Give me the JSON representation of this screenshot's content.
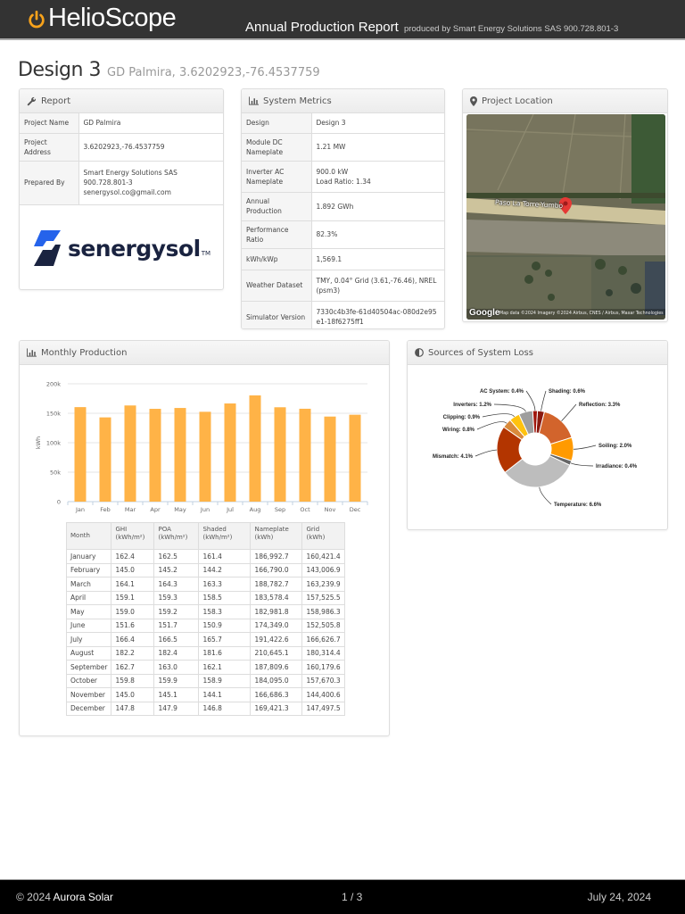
{
  "header": {
    "logo_text": "HelioScope",
    "report_title": "Annual Production Report",
    "report_subtitle": "produced by Smart Energy Solutions SAS 900.728.801-3"
  },
  "page": {
    "title": "Design 3",
    "subtitle": "GD Palmira, 3.6202923,-76.4537759"
  },
  "report_panel": {
    "title": "Report",
    "icon": "wrench-icon",
    "rows": [
      {
        "label": "Project Name",
        "value": "GD Palmira"
      },
      {
        "label": "Project Address",
        "value": "3.6202923,-76.4537759"
      },
      {
        "label": "Prepared By",
        "value": "Smart Energy Solutions SAS 900.728.801-3",
        "value2": "senergysol.co@gmail.com"
      }
    ],
    "brand_name": "senergysol",
    "brand_tm": "TM"
  },
  "metrics_panel": {
    "title": "System Metrics",
    "icon": "bar-chart-icon",
    "rows": [
      {
        "label": "Design",
        "value": "Design 3"
      },
      {
        "label": "Module DC Nameplate",
        "value": "1.21 MW"
      },
      {
        "label": "Inverter AC Nameplate",
        "value": "900.0 kW",
        "value2": "Load Ratio: 1.34"
      },
      {
        "label": "Annual Production",
        "value": "1.892 GWh"
      },
      {
        "label": "Performance Ratio",
        "value": "82.3%"
      },
      {
        "label": "kWh/kWp",
        "value": "1,569.1"
      },
      {
        "label": "Weather Dataset",
        "value": "TMY, 0.04° Grid (3.61,-76.46), NREL (psm3)"
      },
      {
        "label": "Simulator Version",
        "value": "7330c4b3fe-61d40504ac-080d2e95e1-18f6275ff1"
      }
    ]
  },
  "location_panel": {
    "title": "Project Location",
    "icon": "map-marker-icon",
    "road_label": "Paso La Torre-Yumbo",
    "google_label": "Google",
    "attribution": "Map data ©2024 Imagery ©2024 Airbus, CNES / Airbus, Maxar Technologies"
  },
  "monthly_panel": {
    "title": "Monthly Production",
    "icon": "bar-chart-icon",
    "table": {
      "headers": [
        {
          "l1": "Month",
          "l2": ""
        },
        {
          "l1": "GHI",
          "l2": "(kWh/m²)"
        },
        {
          "l1": "POA",
          "l2": "(kWh/m²)"
        },
        {
          "l1": "Shaded",
          "l2": "(kWh/m²)"
        },
        {
          "l1": "Nameplate",
          "l2": "(kWh)"
        },
        {
          "l1": "Grid",
          "l2": "(kWh)"
        }
      ],
      "rows": [
        [
          "January",
          "162.4",
          "162.5",
          "161.4",
          "186,992.7",
          "160,421.4"
        ],
        [
          "February",
          "145.0",
          "145.2",
          "144.2",
          "166,790.0",
          "143,006.9"
        ],
        [
          "March",
          "164.1",
          "164.3",
          "163.3",
          "188,782.7",
          "163,239.9"
        ],
        [
          "April",
          "159.1",
          "159.3",
          "158.5",
          "183,578.4",
          "157,525.5"
        ],
        [
          "May",
          "159.0",
          "159.2",
          "158.3",
          "182,981.8",
          "158,986.3"
        ],
        [
          "June",
          "151.6",
          "151.7",
          "150.9",
          "174,349.0",
          "152,505.8"
        ],
        [
          "July",
          "166.4",
          "166.5",
          "165.7",
          "191,422.6",
          "166,626.7"
        ],
        [
          "August",
          "182.2",
          "182.4",
          "181.6",
          "210,645.1",
          "180,314.4"
        ],
        [
          "September",
          "162.7",
          "163.0",
          "162.1",
          "187,809.6",
          "160,179.6"
        ],
        [
          "October",
          "159.8",
          "159.9",
          "158.9",
          "184,095.0",
          "157,670.3"
        ],
        [
          "November",
          "145.0",
          "145.1",
          "144.1",
          "166,686.3",
          "144,400.6"
        ],
        [
          "December",
          "147.8",
          "147.9",
          "146.8",
          "169,421.3",
          "147,497.5"
        ]
      ]
    }
  },
  "loss_panel": {
    "title": "Sources of System Loss",
    "icon": "half-circle-icon"
  },
  "chart_data": [
    {
      "type": "bar",
      "title": "Monthly Production",
      "xlabel": "",
      "ylabel": "kWh",
      "categories": [
        "Jan",
        "Feb",
        "Mar",
        "Apr",
        "May",
        "Jun",
        "Jul",
        "Aug",
        "Sep",
        "Oct",
        "Nov",
        "Dec"
      ],
      "values": [
        160421.4,
        143006.9,
        163239.9,
        157525.5,
        158986.3,
        152505.8,
        166626.7,
        180314.4,
        160179.6,
        157670.3,
        144400.6,
        147497.5
      ],
      "yticks": [
        "0",
        "50k",
        "100k",
        "150k",
        "200k"
      ],
      "ylim": [
        0,
        200000
      ],
      "grid": true,
      "color": "#FFB347"
    },
    {
      "type": "pie",
      "title": "Sources of System Loss",
      "donut": true,
      "slices": [
        {
          "label": "Shading",
          "value": 0.6,
          "color": "#8B1A10"
        },
        {
          "label": "Reflection",
          "value": 3.3,
          "color": "#D2642C"
        },
        {
          "label": "Soiling",
          "value": 2.0,
          "color": "#FF9A00"
        },
        {
          "label": "Irradiance",
          "value": 0.4,
          "color": "#666666"
        },
        {
          "label": "Temperature",
          "value": 6.6,
          "color": "#BDBDBD"
        },
        {
          "label": "Mismatch",
          "value": 4.1,
          "color": "#B33500"
        },
        {
          "label": "Wiring",
          "value": 0.8,
          "color": "#D98A3A"
        },
        {
          "label": "Clipping",
          "value": 0.9,
          "color": "#FFC20E"
        },
        {
          "label": "Inverters",
          "value": 1.2,
          "color": "#9E9E9E"
        },
        {
          "label": "AC System",
          "value": 0.4,
          "color": "#A0150C"
        }
      ],
      "labels_text": [
        "Shading: 0.6%",
        "Reflection: 3.3%",
        "Soiling: 2.0%",
        "Irradiance: 0.4%",
        "Temperature: 6.6%",
        "Mismatch: 4.1%",
        "Wiring: 0.8%",
        "Clipping: 0.9%",
        "Inverters: 1.2%",
        "AC System: 0.4%"
      ]
    }
  ],
  "footer": {
    "copyright": "© 2024",
    "brand": "Aurora Solar",
    "page": "1 / 3",
    "date": "July 24, 2024"
  }
}
